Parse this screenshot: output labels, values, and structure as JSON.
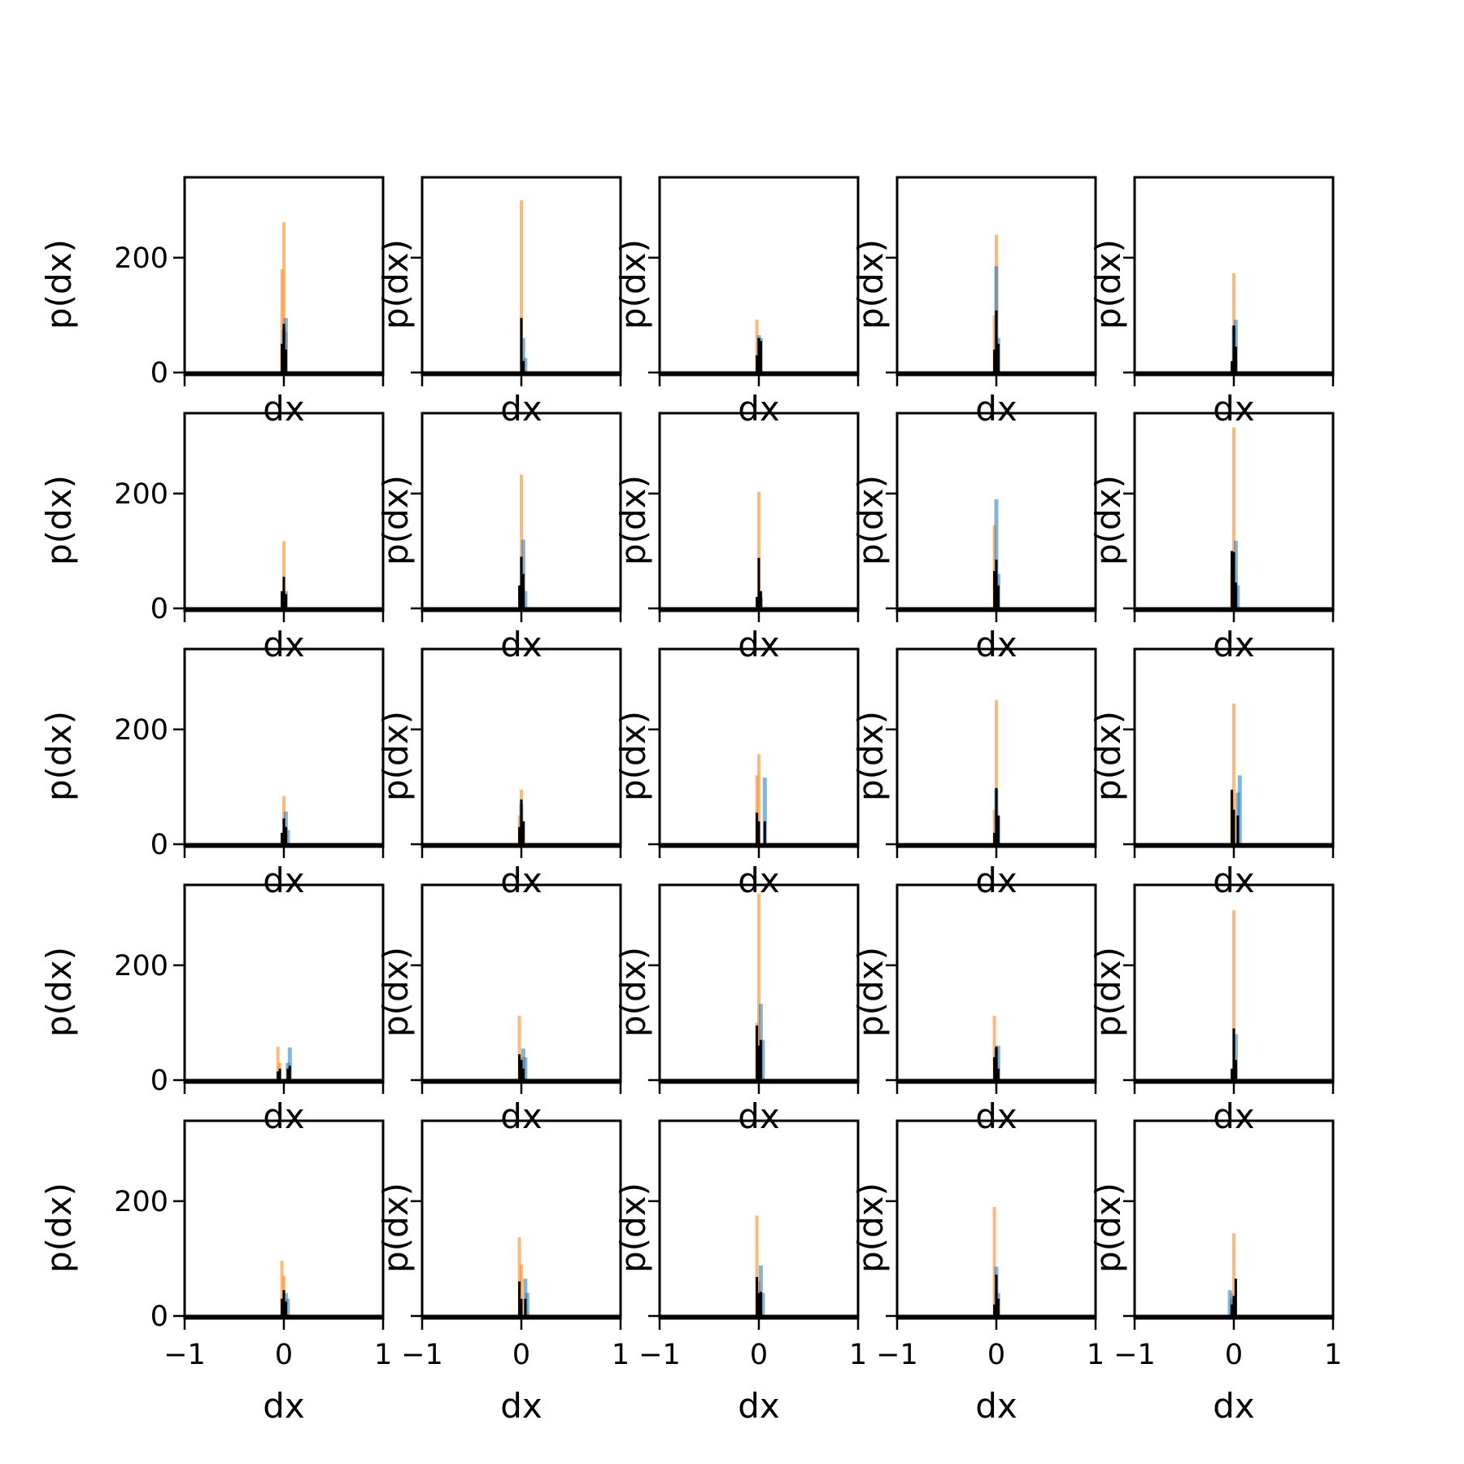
{
  "chart_data": {
    "type": "bar",
    "grid_layout": {
      "rows": 5,
      "cols": 5
    },
    "xlabel": "dx",
    "ylabel": "p(dx)",
    "xlim": [
      -1,
      1
    ],
    "ylim": [
      0,
      340
    ],
    "xticks": [
      -1,
      0,
      1
    ],
    "xtick_labels": [
      "−1",
      "0",
      "1"
    ],
    "yticks": [
      0,
      200
    ],
    "ytick_labels": [
      "0",
      "200"
    ],
    "grid": false,
    "legend": "none",
    "series_colors": {
      "series_1": "#ff7f0e",
      "series_2": "#1f77b4",
      "series_3": "#000000"
    },
    "bin_width": 0.02,
    "panels": [
      {
        "series": [
          {
            "x": [
              -0.02,
              0.0,
              0.02
            ],
            "y": [
              180,
              262,
              70
            ]
          },
          {
            "x": [
              0.0,
              0.02
            ],
            "y": [
              75,
              95
            ]
          },
          {
            "x": [
              -0.02,
              0.0,
              0.02
            ],
            "y": [
              50,
              85,
              40
            ]
          }
        ]
      },
      {
        "series": [
          {
            "x": [
              0.0,
              0.02
            ],
            "y": [
              300,
              20
            ]
          },
          {
            "x": [
              0.02,
              0.04
            ],
            "y": [
              60,
              25
            ]
          },
          {
            "x": [
              0.0,
              0.02
            ],
            "y": [
              95,
              20
            ]
          }
        ]
      },
      {
        "series": [
          {
            "x": [
              -0.02,
              0.0
            ],
            "y": [
              92,
              60
            ]
          },
          {
            "x": [
              0.0,
              0.02
            ],
            "y": [
              65,
              60
            ]
          },
          {
            "x": [
              -0.02,
              0.0,
              0.02
            ],
            "y": [
              30,
              60,
              55
            ]
          }
        ]
      },
      {
        "series": [
          {
            "x": [
              -0.02,
              0.0,
              0.02
            ],
            "y": [
              100,
              240,
              50
            ]
          },
          {
            "x": [
              0.0,
              0.02
            ],
            "y": [
              185,
              60
            ]
          },
          {
            "x": [
              -0.02,
              0.0,
              0.02
            ],
            "y": [
              40,
              108,
              50
            ]
          }
        ]
      },
      {
        "series": [
          {
            "x": [
              0.0,
              0.02
            ],
            "y": [
              173,
              30
            ]
          },
          {
            "x": [
              0.0,
              0.02
            ],
            "y": [
              80,
              92
            ]
          },
          {
            "x": [
              -0.02,
              0.0,
              0.02
            ],
            "y": [
              20,
              82,
              45
            ]
          }
        ]
      },
      {
        "series": [
          {
            "x": [
              0.0,
              0.02
            ],
            "y": [
              117,
              25
            ]
          },
          {
            "x": [
              0.02
            ],
            "y": [
              30
            ]
          },
          {
            "x": [
              -0.02,
              0.0,
              0.02
            ],
            "y": [
              30,
              55,
              25
            ]
          }
        ]
      },
      {
        "series": [
          {
            "x": [
              0.0,
              0.02
            ],
            "y": [
              233,
              35
            ]
          },
          {
            "x": [
              0.02,
              0.04
            ],
            "y": [
              120,
              30
            ]
          },
          {
            "x": [
              -0.02,
              0.0,
              0.02
            ],
            "y": [
              40,
              90,
              60
            ]
          }
        ]
      },
      {
        "series": [
          {
            "x": [
              0.0,
              0.02
            ],
            "y": [
              203,
              30
            ]
          },
          {
            "x": [
              0.02
            ],
            "y": [
              20
            ]
          },
          {
            "x": [
              -0.02,
              0.0,
              0.02
            ],
            "y": [
              20,
              88,
              30
            ]
          }
        ]
      },
      {
        "series": [
          {
            "x": [
              -0.02,
              0.0
            ],
            "y": [
              145,
              40
            ]
          },
          {
            "x": [
              0.0,
              0.02
            ],
            "y": [
              190,
              60
            ]
          },
          {
            "x": [
              -0.02,
              0.0,
              0.02
            ],
            "y": [
              65,
              85,
              40
            ]
          }
        ]
      },
      {
        "series": [
          {
            "x": [
              -0.02,
              0.0,
              0.02
            ],
            "y": [
              60,
              315,
              30
            ]
          },
          {
            "x": [
              0.02,
              0.04
            ],
            "y": [
              118,
              40
            ]
          },
          {
            "x": [
              -0.02,
              0.0,
              0.02
            ],
            "y": [
              100,
              98,
              45
            ]
          }
        ]
      },
      {
        "series": [
          {
            "x": [
              0.0,
              0.02
            ],
            "y": [
              84,
              30
            ]
          },
          {
            "x": [
              0.02,
              0.04
            ],
            "y": [
              57,
              25
            ]
          },
          {
            "x": [
              -0.02,
              0.0,
              0.02
            ],
            "y": [
              20,
              45,
              30
            ]
          }
        ]
      },
      {
        "series": [
          {
            "x": [
              -0.02,
              0.0
            ],
            "y": [
              50,
              95
            ]
          },
          {
            "x": [
              0.0,
              0.02
            ],
            "y": [
              70,
              40
            ]
          },
          {
            "x": [
              -0.02,
              0.0,
              0.02
            ],
            "y": [
              30,
              78,
              40
            ]
          }
        ]
      },
      {
        "series": [
          {
            "x": [
              -0.02,
              0.0
            ],
            "y": [
              120,
              157
            ]
          },
          {
            "x": [
              0.06
            ],
            "y": [
              116
            ]
          },
          {
            "x": [
              -0.02,
              0.0,
              0.06
            ],
            "y": [
              55,
              40,
              40
            ]
          }
        ]
      },
      {
        "series": [
          {
            "x": [
              -0.02,
              0.0
            ],
            "y": [
              60,
              251
            ]
          },
          {
            "x": [
              0.0,
              0.02
            ],
            "y": [
              95,
              50
            ]
          },
          {
            "x": [
              -0.02,
              0.0,
              0.02
            ],
            "y": [
              20,
              98,
              50
            ]
          }
        ]
      },
      {
        "series": [
          {
            "x": [
              -0.02,
              0.0
            ],
            "y": [
              90,
              245
            ]
          },
          {
            "x": [
              0.04,
              0.06
            ],
            "y": [
              90,
              120
            ]
          },
          {
            "x": [
              -0.02,
              0.0,
              0.04
            ],
            "y": [
              95,
              60,
              50
            ]
          }
        ]
      },
      {
        "series": [
          {
            "x": [
              -0.06,
              -0.04
            ],
            "y": [
              58,
              30
            ]
          },
          {
            "x": [
              0.04,
              0.06
            ],
            "y": [
              30,
              57
            ]
          },
          {
            "x": [
              -0.06,
              -0.04,
              0.04,
              0.06
            ],
            "y": [
              15,
              20,
              20,
              25
            ]
          }
        ]
      },
      {
        "series": [
          {
            "x": [
              -0.02,
              0.0
            ],
            "y": [
              112,
              40
            ]
          },
          {
            "x": [
              0.02,
              0.04
            ],
            "y": [
              55,
              40
            ]
          },
          {
            "x": [
              -0.02,
              0.0,
              0.02
            ],
            "y": [
              45,
              35,
              20
            ]
          }
        ]
      },
      {
        "series": [
          {
            "x": [
              -0.02,
              0.0
            ],
            "y": [
              100,
              325
            ]
          },
          {
            "x": [
              0.02,
              0.04
            ],
            "y": [
              133,
              70
            ]
          },
          {
            "x": [
              -0.02,
              0.0,
              0.02
            ],
            "y": [
              95,
              60,
              70
            ]
          }
        ]
      },
      {
        "series": [
          {
            "x": [
              -0.02,
              0.0
            ],
            "y": [
              112,
              60
            ]
          },
          {
            "x": [
              0.0,
              0.02
            ],
            "y": [
              55,
              60
            ]
          },
          {
            "x": [
              -0.02,
              0.0,
              0.02
            ],
            "y": [
              40,
              58,
              20
            ]
          }
        ]
      },
      {
        "series": [
          {
            "x": [
              0.0,
              0.02
            ],
            "y": [
              296,
              30
            ]
          },
          {
            "x": [
              0.02
            ],
            "y": [
              80
            ]
          },
          {
            "x": [
              -0.02,
              0.0,
              0.02
            ],
            "y": [
              20,
              90,
              35
            ]
          }
        ]
      },
      {
        "series": [
          {
            "x": [
              -0.02,
              0.0
            ],
            "y": [
              96,
              70
            ]
          },
          {
            "x": [
              0.02,
              0.04
            ],
            "y": [
              40,
              30
            ]
          },
          {
            "x": [
              -0.02,
              0.0,
              0.02
            ],
            "y": [
              30,
              45,
              25
            ]
          }
        ]
      },
      {
        "series": [
          {
            "x": [
              -0.02,
              0.0
            ],
            "y": [
              137,
              90
            ]
          },
          {
            "x": [
              0.04,
              0.06
            ],
            "y": [
              65,
              40
            ]
          },
          {
            "x": [
              -0.02,
              0.0,
              0.04
            ],
            "y": [
              60,
              30,
              30
            ]
          }
        ]
      },
      {
        "series": [
          {
            "x": [
              -0.02,
              0.0
            ],
            "y": [
              175,
              60
            ]
          },
          {
            "x": [
              0.02,
              0.04
            ],
            "y": [
              88,
              40
            ]
          },
          {
            "x": [
              -0.02,
              0.0,
              0.02
            ],
            "y": [
              68,
              40,
              42
            ]
          }
        ]
      },
      {
        "series": [
          {
            "x": [
              -0.02,
              0.0
            ],
            "y": [
              190,
              50
            ]
          },
          {
            "x": [
              0.0,
              0.02
            ],
            "y": [
              86,
              40
            ]
          },
          {
            "x": [
              -0.02,
              0.0,
              0.02
            ],
            "y": [
              20,
              72,
              30
            ]
          }
        ]
      },
      {
        "series": [
          {
            "x": [
              -0.02,
              0.0
            ],
            "y": [
              40,
              144
            ]
          },
          {
            "x": [
              -0.04,
              -0.02
            ],
            "y": [
              45,
              30
            ]
          },
          {
            "x": [
              -0.02,
              0.0,
              0.02
            ],
            "y": [
              20,
              35,
              65
            ]
          }
        ]
      }
    ]
  }
}
